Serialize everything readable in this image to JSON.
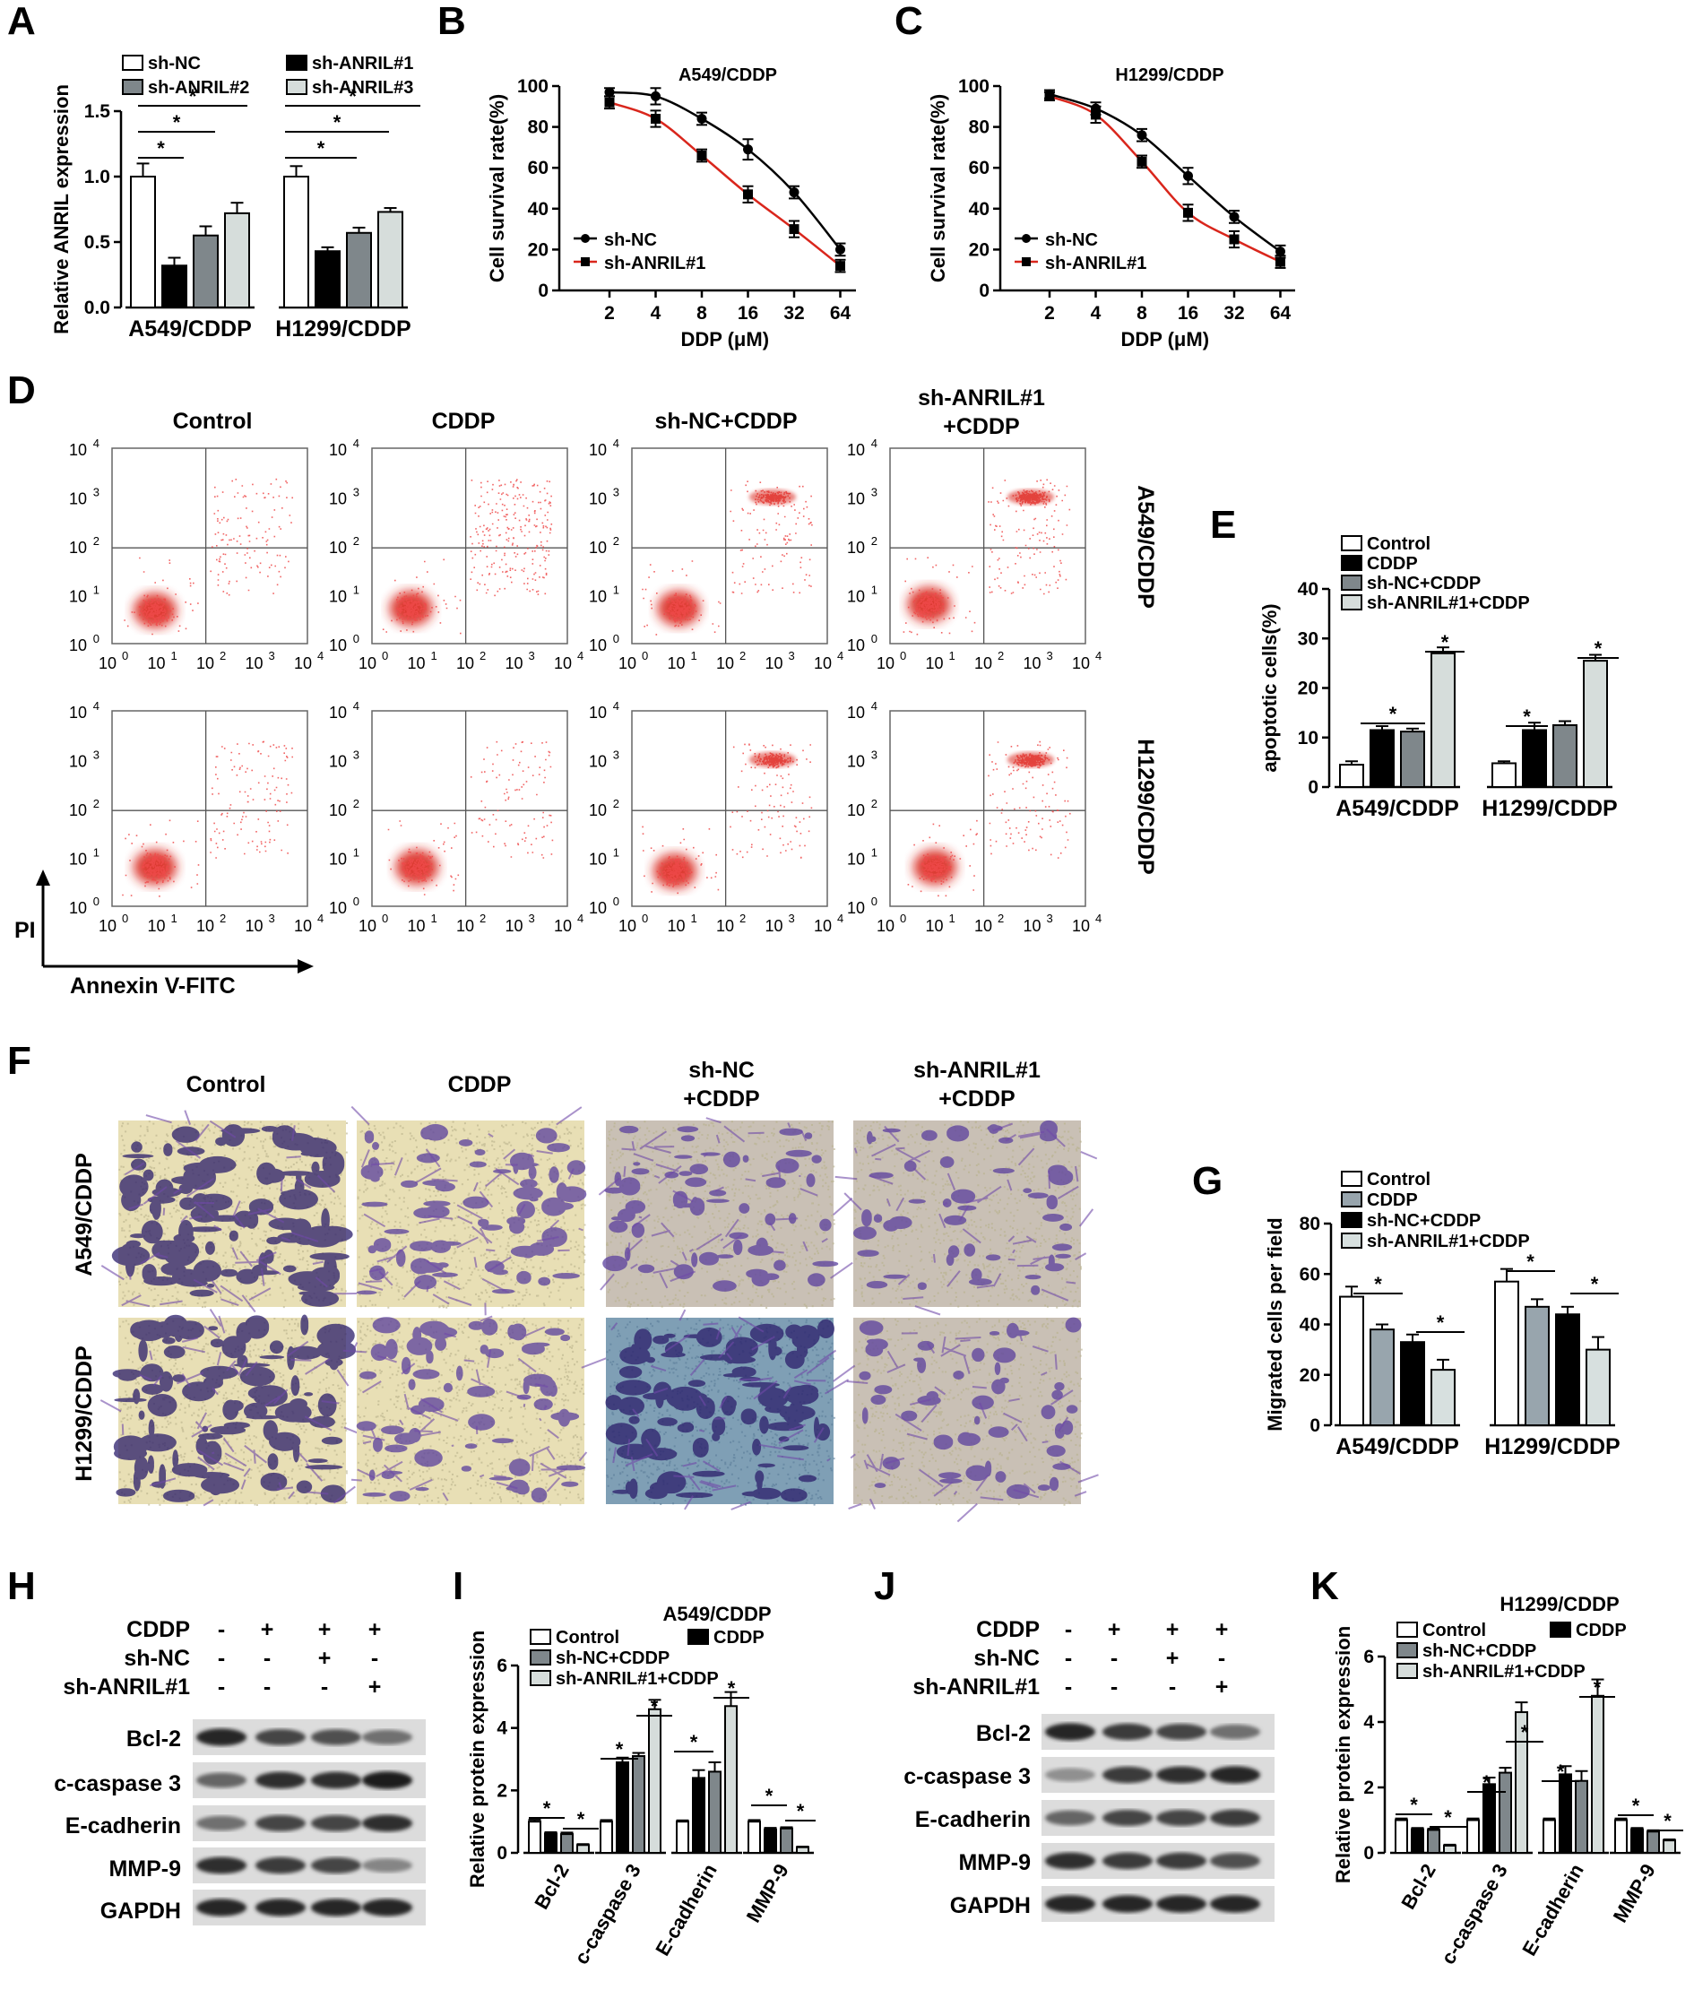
{
  "colors": {
    "white": "#ffffff",
    "black": "#000000",
    "gray": "#7f878b",
    "light": "#d6dddb",
    "grayG": "#98a5ad",
    "lightG": "#d7e0df",
    "red": "#d9261c",
    "dot": "#ef4a4a"
  },
  "panel_letters": [
    "A",
    "B",
    "C",
    "D",
    "E",
    "F",
    "G",
    "H",
    "I",
    "J",
    "K"
  ],
  "flow": {
    "conditions": [
      "Control",
      "CDDP",
      "sh-NC+CDDP"
    ],
    "cond4_line1": "sh-ANRIL#1",
    "cond4_line2": "+CDDP",
    "rows": [
      "A549/CDDP",
      "H1299/CDDP"
    ],
    "ytick_labels": [
      "10",
      "10",
      "10",
      "10",
      "10"
    ],
    "ytick_exps": [
      "4",
      "3",
      "2",
      "1",
      "0"
    ],
    "xtick_labels": [
      "10",
      "10",
      "10",
      "10",
      "10"
    ],
    "xtick_exps": [
      "0",
      "1",
      "2",
      "3",
      "4"
    ],
    "y_axis_label": "PI",
    "x_axis_label": "Annexin V-FITC",
    "ur_density": [
      [
        0.2,
        0.5,
        0.7,
        1.0
      ],
      [
        0.2,
        0.15,
        0.7,
        0.9
      ]
    ]
  },
  "migration": {
    "conditions": [
      "Control",
      "CDDP"
    ],
    "cond3_line1": "sh-NC",
    "cond3_line2": "+CDDP",
    "cond4_line1": "sh-ANRIL#1",
    "cond4_line2": "+CDDP",
    "rows": [
      "A549/CDDP",
      "H1299/CDDP"
    ],
    "intensity": [
      [
        0.95,
        0.55,
        0.45,
        0.35
      ],
      [
        0.9,
        0.55,
        0.85,
        0.35
      ]
    ],
    "tint": [
      [
        0,
        0,
        0.3,
        0.2
      ],
      [
        0,
        0,
        0.6,
        0.2
      ]
    ]
  },
  "western": {
    "H": {
      "conditions": [
        "CDDP",
        "sh-NC",
        "sh-ANRIL#1"
      ],
      "signs": [
        [
          "-",
          "+",
          "+",
          "+"
        ],
        [
          "-",
          "-",
          "+",
          "-"
        ],
        [
          "-",
          "-",
          "-",
          "+"
        ]
      ],
      "proteins": [
        "Bcl-2",
        "c-caspase 3",
        "E-cadherin",
        "MMP-9",
        "GAPDH"
      ],
      "band_strength": [
        [
          0.9,
          0.75,
          0.7,
          0.55
        ],
        [
          0.6,
          0.85,
          0.85,
          0.95
        ],
        [
          0.55,
          0.75,
          0.75,
          0.85
        ],
        [
          0.85,
          0.8,
          0.75,
          0.45
        ],
        [
          0.9,
          0.9,
          0.9,
          0.9
        ]
      ]
    },
    "J": {
      "conditions": [
        "CDDP",
        "sh-NC",
        "sh-ANRIL#1"
      ],
      "signs": [
        [
          "-",
          "+",
          "+",
          "+"
        ],
        [
          "-",
          "-",
          "+",
          "-"
        ],
        [
          "-",
          "-",
          "-",
          "+"
        ]
      ],
      "proteins": [
        "Bcl-2",
        "c-caspase 3",
        "E-cadherin",
        "MMP-9",
        "GAPDH"
      ],
      "band_strength": [
        [
          0.9,
          0.8,
          0.75,
          0.55
        ],
        [
          0.4,
          0.8,
          0.85,
          0.9
        ],
        [
          0.6,
          0.75,
          0.75,
          0.8
        ],
        [
          0.85,
          0.8,
          0.8,
          0.7
        ],
        [
          0.9,
          0.9,
          0.9,
          0.9
        ]
      ]
    }
  },
  "chart_data": [
    {
      "panel": "A",
      "type": "bar",
      "title": "",
      "ylabel": "Relative ANRIL expression",
      "ylim": [
        0,
        1.5
      ],
      "yticks": [
        "0.0",
        "0.5",
        "1.0",
        "1.5"
      ],
      "categories": [
        "A549/CDDP",
        "H1299/CDDP"
      ],
      "series": [
        {
          "name": "sh-NC",
          "color": "white",
          "values": [
            1.0,
            1.0
          ],
          "err": [
            0.1,
            0.08
          ]
        },
        {
          "name": "sh-ANRIL#1",
          "color": "black",
          "values": [
            0.32,
            0.43
          ],
          "err": [
            0.06,
            0.03
          ]
        },
        {
          "name": "sh-ANRIL#2",
          "color": "gray",
          "values": [
            0.55,
            0.57
          ],
          "err": [
            0.07,
            0.04
          ]
        },
        {
          "name": "sh-ANRIL#3",
          "color": "light",
          "values": [
            0.72,
            0.73
          ],
          "err": [
            0.08,
            0.03
          ]
        }
      ],
      "legend": [
        [
          "sh-NC",
          "white"
        ],
        [
          "sh-ANRIL#1",
          "black"
        ],
        [
          "sh-ANRIL#2",
          "gray"
        ],
        [
          "sh-ANRIL#3",
          "light"
        ]
      ],
      "sig": "*",
      "xlabel": ""
    },
    {
      "panel": "B",
      "type": "line",
      "title": "A549/CDDP",
      "xlabel": "DDP (μM)",
      "ylabel": "Cell survival rate(%)",
      "ylim": [
        0,
        100
      ],
      "yticks": [
        "0",
        "20",
        "40",
        "60",
        "80",
        "100"
      ],
      "x": [
        "2",
        "4",
        "8",
        "16",
        "32",
        "64"
      ],
      "series": [
        {
          "name": "sh-NC",
          "color": "black",
          "values": [
            97,
            95,
            84,
            69,
            48,
            20
          ],
          "err": [
            2,
            4,
            3,
            5,
            3,
            3
          ]
        },
        {
          "name": "sh-ANRIL#1",
          "color": "red",
          "values": [
            92,
            84,
            66,
            47,
            30,
            12
          ],
          "err": [
            3,
            4,
            3,
            4,
            4,
            3
          ]
        }
      ]
    },
    {
      "panel": "C",
      "type": "line",
      "title": "H1299/CDDP",
      "xlabel": "DDP (μM)",
      "ylabel": "Cell survival rate(%)",
      "ylim": [
        0,
        100
      ],
      "yticks": [
        "0",
        "20",
        "40",
        "60",
        "80",
        "100"
      ],
      "x": [
        "2",
        "4",
        "8",
        "16",
        "32",
        "64"
      ],
      "series": [
        {
          "name": "sh-NC",
          "color": "black",
          "values": [
            96,
            89,
            76,
            56,
            36,
            19
          ],
          "err": [
            2,
            3,
            3,
            4,
            3,
            3
          ]
        },
        {
          "name": "sh-ANRIL#1",
          "color": "red",
          "values": [
            95,
            86,
            63,
            38,
            25,
            14
          ],
          "err": [
            2,
            4,
            3,
            4,
            4,
            3
          ]
        }
      ]
    },
    {
      "panel": "E",
      "type": "bar",
      "title": "",
      "ylabel": "apoptotic cells(%)",
      "ylim": [
        0,
        40
      ],
      "yticks": [
        "0",
        "10",
        "20",
        "30",
        "40"
      ],
      "categories": [
        "A549/CDDP",
        "H1299/CDDP"
      ],
      "series": [
        {
          "name": "Control",
          "color": "white",
          "values": [
            4.5,
            4.8
          ],
          "err": [
            0.7,
            0.4
          ]
        },
        {
          "name": "CDDP",
          "color": "black",
          "values": [
            11.5,
            11.5
          ],
          "err": [
            0.8,
            1.5
          ]
        },
        {
          "name": "sh-NC+CDDP",
          "color": "gray",
          "values": [
            11.2,
            12.5
          ],
          "err": [
            0.6,
            0.8
          ]
        },
        {
          "name": "sh-ANRIL#1+CDDP",
          "color": "light",
          "values": [
            27,
            25.5
          ],
          "err": [
            1.2,
            1.2
          ]
        }
      ],
      "legend": [
        [
          "Control",
          "white"
        ],
        [
          "CDDP",
          "black"
        ],
        [
          "sh-NC+CDDP",
          "gray"
        ],
        [
          "sh-ANRIL#1+CDDP",
          "light"
        ]
      ],
      "sig": "*",
      "xlabel": ""
    },
    {
      "panel": "G",
      "type": "bar",
      "title": "",
      "ylabel": "Migrated cells per field",
      "ylim": [
        0,
        80
      ],
      "yticks": [
        "0",
        "20",
        "40",
        "60",
        "80"
      ],
      "categories": [
        "A549/CDDP",
        "H1299/CDDP"
      ],
      "series": [
        {
          "name": "Control",
          "color": "white",
          "values": [
            51,
            57
          ],
          "err": [
            4,
            5
          ]
        },
        {
          "name": "CDDP",
          "color": "grayG",
          "values": [
            38,
            47
          ],
          "err": [
            2,
            3
          ]
        },
        {
          "name": "sh-NC+CDDP",
          "color": "black",
          "values": [
            33,
            44
          ],
          "err": [
            3,
            3
          ]
        },
        {
          "name": "sh-ANRIL#1+CDDP",
          "color": "lightG",
          "values": [
            22,
            30
          ],
          "err": [
            4,
            5
          ]
        }
      ],
      "legend": [
        [
          "Control",
          "white"
        ],
        [
          "CDDP",
          "grayG"
        ],
        [
          "sh-NC+CDDP",
          "black"
        ],
        [
          "sh-ANRIL#1+CDDP",
          "lightG"
        ]
      ],
      "sig": "*",
      "xlabel": ""
    },
    {
      "panel": "I",
      "type": "bar",
      "title": "A549/CDDP",
      "ylabel": "Relative protein expression",
      "ylim": [
        0,
        6
      ],
      "yticks": [
        "0",
        "2",
        "4",
        "6"
      ],
      "categories": [
        "Bcl-2",
        "c-caspase 3",
        "E-cadherin",
        "MMP-9"
      ],
      "series": [
        {
          "name": "Control",
          "color": "white",
          "values": [
            1.0,
            1.0,
            1.0,
            1.0
          ],
          "err": [
            0.06,
            0.05,
            0.04,
            0.05
          ]
        },
        {
          "name": "CDDP",
          "color": "black",
          "values": [
            0.62,
            2.9,
            2.4,
            0.75
          ],
          "err": [
            0.04,
            0.15,
            0.25,
            0.05
          ]
        },
        {
          "name": "sh-NC+CDDP",
          "color": "gray",
          "values": [
            0.6,
            3.1,
            2.6,
            0.78
          ],
          "err": [
            0.05,
            0.1,
            0.3,
            0.04
          ]
        },
        {
          "name": "sh-ANRIL#1+CDDP",
          "color": "light",
          "values": [
            0.25,
            4.6,
            4.7,
            0.18
          ],
          "err": [
            0.03,
            0.3,
            0.45,
            0.02
          ]
        }
      ],
      "legend": [
        [
          "Control",
          "white"
        ],
        [
          "CDDP",
          "black"
        ],
        [
          "sh-NC+CDDP",
          "gray"
        ],
        [
          "sh-ANRIL#1+CDDP",
          "light"
        ]
      ],
      "sig": "*",
      "xlabel": ""
    },
    {
      "panel": "K",
      "type": "bar",
      "title": "H1299/CDDP",
      "ylabel": "Relative protein expression",
      "ylim": [
        0,
        6
      ],
      "yticks": [
        "0",
        "2",
        "4",
        "6"
      ],
      "categories": [
        "Bcl-2",
        "c-caspase 3",
        "E-cadherin",
        "MMP-9"
      ],
      "series": [
        {
          "name": "Control",
          "color": "white",
          "values": [
            1.0,
            1.0,
            1.0,
            1.0
          ],
          "err": [
            0.05,
            0.05,
            0.05,
            0.05
          ]
        },
        {
          "name": "CDDP",
          "color": "black",
          "values": [
            0.72,
            2.1,
            2.4,
            0.72
          ],
          "err": [
            0.04,
            0.2,
            0.25,
            0.04
          ]
        },
        {
          "name": "sh-NC+CDDP",
          "color": "gray",
          "values": [
            0.7,
            2.45,
            2.2,
            0.65
          ],
          "err": [
            0.04,
            0.15,
            0.3,
            0.04
          ]
        },
        {
          "name": "sh-ANRIL#1+CDDP",
          "color": "light",
          "values": [
            0.22,
            4.3,
            4.8,
            0.38
          ],
          "err": [
            0.03,
            0.3,
            0.5,
            0.03
          ]
        }
      ],
      "legend": [
        [
          "Control",
          "white"
        ],
        [
          "CDDP",
          "black"
        ],
        [
          "sh-NC+CDDP",
          "gray"
        ],
        [
          "sh-ANRIL#1+CDDP",
          "light"
        ]
      ],
      "sig": "*",
      "xlabel": ""
    }
  ]
}
